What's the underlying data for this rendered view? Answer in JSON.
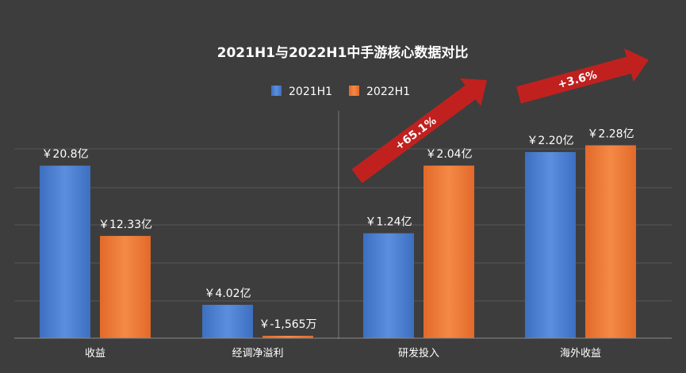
{
  "chart_data": {
    "type": "bar",
    "title": "2021H1与2022H1中手游核心数据对比",
    "categories": [
      "收益",
      "经调净溢利",
      "研发投入",
      "海外收益"
    ],
    "series": [
      {
        "name": "2021H1",
        "color": "#4a7fd0",
        "values": [
          20.8,
          4.02,
          1.24,
          2.2
        ],
        "labels": [
          "￥20.8亿",
          "￥4.02亿",
          "￥1.24亿",
          "￥2.20亿"
        ]
      },
      {
        "name": "2022H1",
        "color": "#ee7a35",
        "values": [
          12.33,
          -0.1565,
          2.04,
          2.28
        ],
        "labels": [
          "￥12.33亿",
          "￥-1,565万",
          "￥2.04亿",
          "￥2.28亿"
        ]
      }
    ],
    "panels": [
      {
        "categories": [
          0,
          1
        ],
        "ymax": 25.5
      },
      {
        "categories": [
          2,
          3
        ],
        "ymax": 2.5
      }
    ],
    "annotations": [
      {
        "text": "+65.1%",
        "category": "研发投入"
      },
      {
        "text": "+3.6%",
        "category": "海外收益"
      }
    ],
    "grid": true,
    "legend_position": "top"
  }
}
